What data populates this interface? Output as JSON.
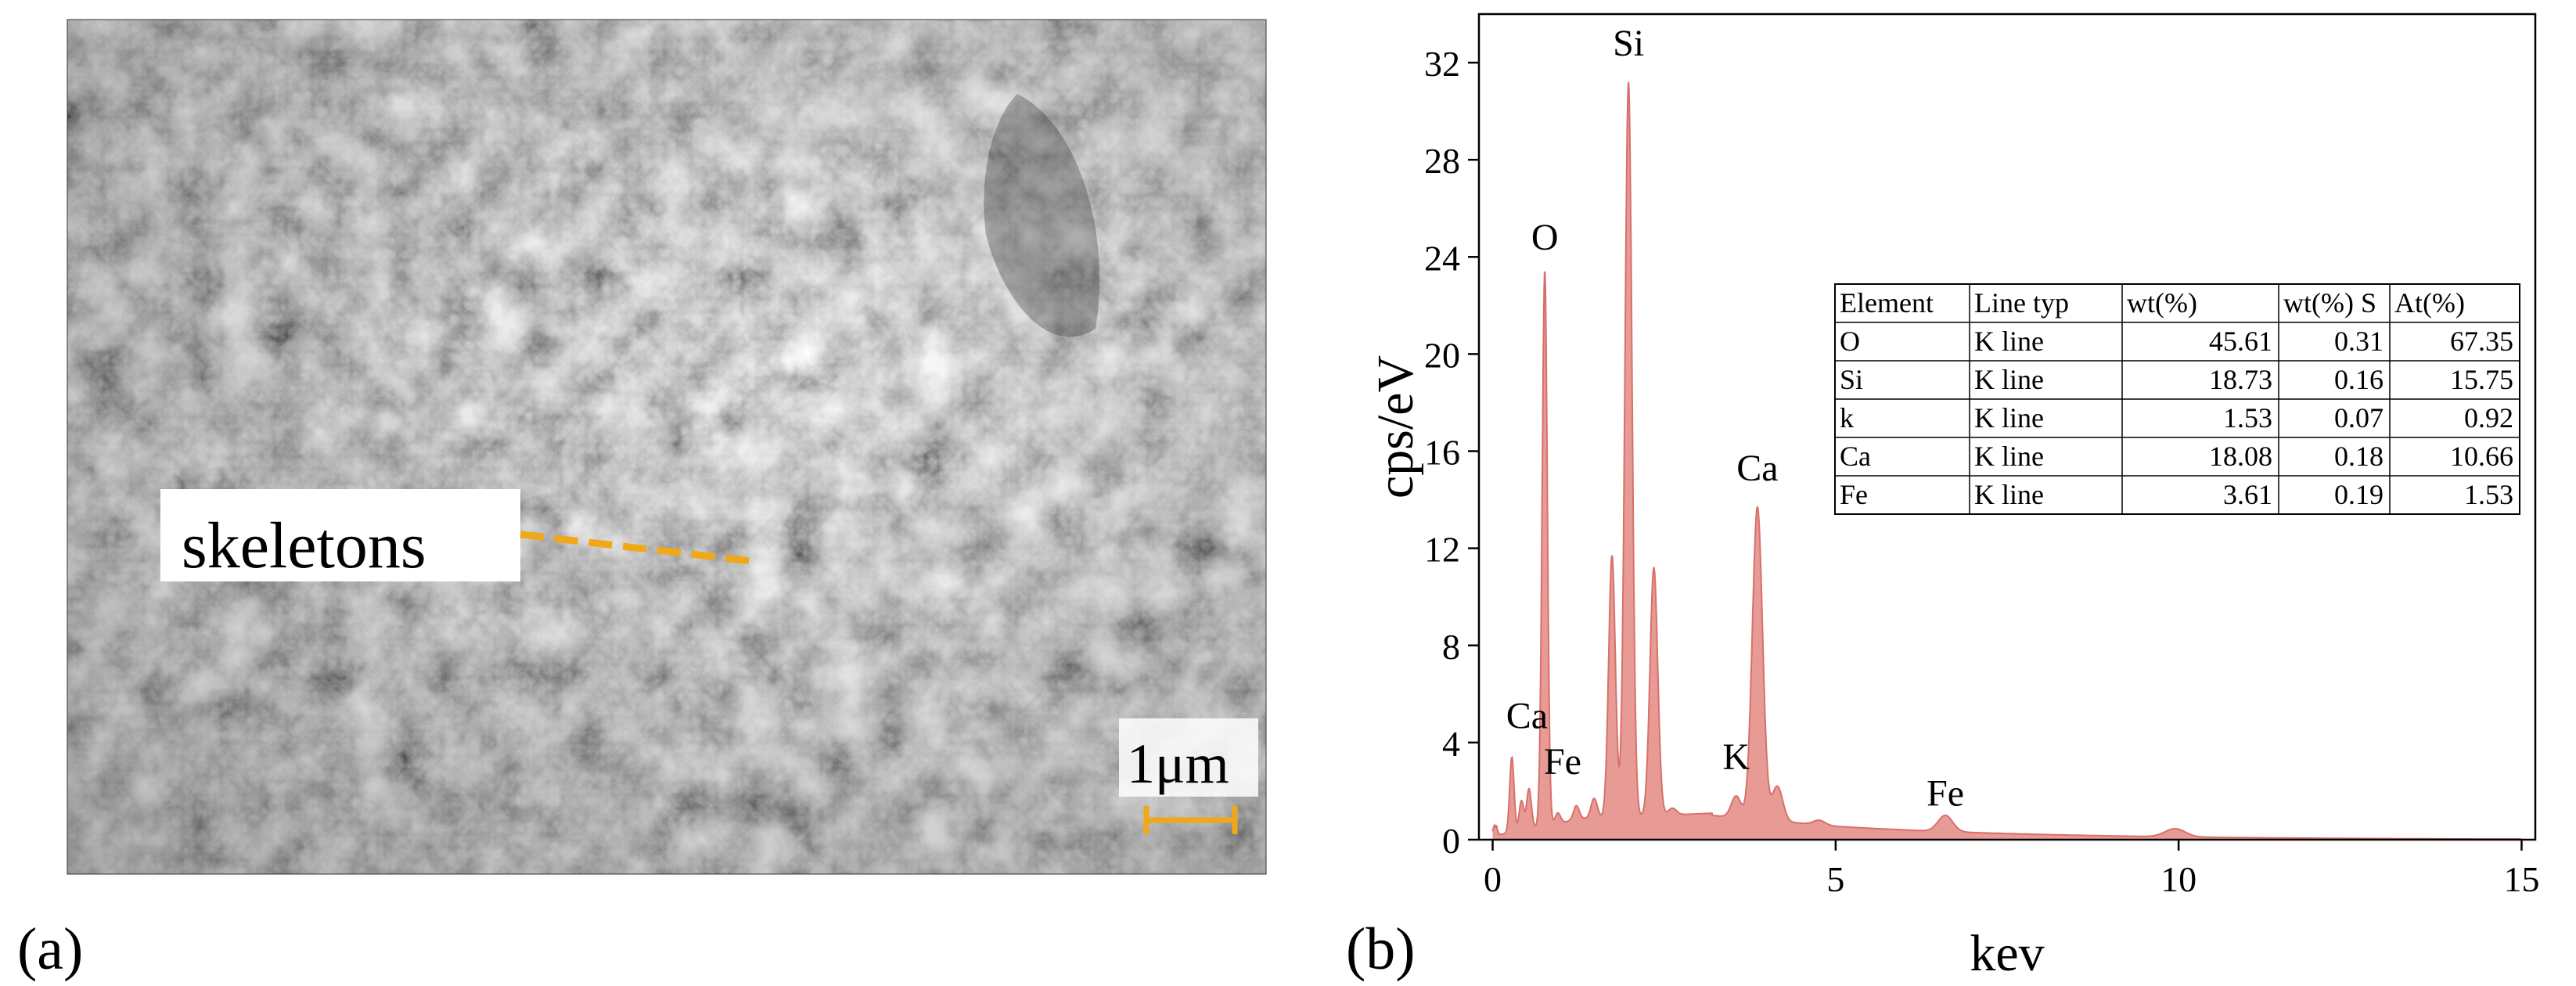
{
  "panel_a": {
    "label": "(a)",
    "annotation": "skeletons",
    "scale_bar_label": "1μm",
    "colors": {
      "annotation_line": "#f0a818",
      "scale_bar": "#f0a818"
    }
  },
  "panel_b": {
    "label": "(b)"
  },
  "chart_data": {
    "type": "area",
    "xlabel": "kev",
    "ylabel": "cps/eV",
    "xlim": [
      -0.2,
      15.2
    ],
    "ylim": [
      0,
      34
    ],
    "xticks": [
      0,
      5,
      10,
      15
    ],
    "xtick_labels": [
      "0",
      "5",
      "10",
      "15"
    ],
    "yticks": [
      0,
      4,
      8,
      12,
      16,
      20,
      24,
      28,
      32
    ],
    "ytick_labels": [
      "0",
      "4",
      "8",
      "12",
      "16",
      "20",
      "24",
      "28",
      "32"
    ],
    "grid": false,
    "colors": {
      "fill": "#e89a95",
      "stroke": "#d7706a"
    },
    "peaks": [
      {
        "x": 0.03,
        "y": 0.6
      },
      {
        "x": 0.28,
        "y": 3.4
      },
      {
        "x": 0.42,
        "y": 1.6
      },
      {
        "x": 0.53,
        "y": 2.1
      },
      {
        "x": 0.71,
        "y": 0.9
      },
      {
        "x": 0.76,
        "y": 23.3
      },
      {
        "x": 0.95,
        "y": 1.1
      },
      {
        "x": 1.22,
        "y": 1.4
      },
      {
        "x": 1.48,
        "y": 1.7
      },
      {
        "x": 1.74,
        "y": 11.7
      },
      {
        "x": 1.98,
        "y": 31.2
      },
      {
        "x": 2.35,
        "y": 11.2
      },
      {
        "x": 2.62,
        "y": 1.3
      },
      {
        "x": 3.55,
        "y": 1.8
      },
      {
        "x": 3.86,
        "y": 13.7
      },
      {
        "x": 4.15,
        "y": 2.2
      },
      {
        "x": 4.76,
        "y": 0.8
      },
      {
        "x": 6.6,
        "y": 1.0
      },
      {
        "x": 9.95,
        "y": 0.45
      }
    ],
    "peak_labels": [
      {
        "text": "Ca",
        "x": 0.5,
        "y": 4.6
      },
      {
        "text": "O",
        "x": 0.76,
        "y": 24.3
      },
      {
        "text": "Fe",
        "x": 1.02,
        "y": 2.7
      },
      {
        "text": "Si",
        "x": 1.98,
        "y": 32.3
      },
      {
        "text": "K",
        "x": 3.55,
        "y": 2.9
      },
      {
        "text": "Ca",
        "x": 3.86,
        "y": 14.8
      },
      {
        "text": "Fe",
        "x": 6.6,
        "y": 1.4
      }
    ],
    "table": {
      "headers": [
        "Element",
        "Line typ",
        "wt(%)",
        "wt(%) S",
        "At(%)"
      ],
      "rows": [
        [
          "O",
          "K line",
          "45.61",
          "0.31",
          "67.35"
        ],
        [
          "Si",
          "K line",
          "18.73",
          "0.16",
          "15.75"
        ],
        [
          "k",
          "K line",
          "1.53",
          "0.07",
          "0.92"
        ],
        [
          "Ca",
          "K line",
          "18.08",
          "0.18",
          "10.66"
        ],
        [
          "Fe",
          "K line",
          "3.61",
          "0.19",
          "1.53"
        ]
      ]
    }
  }
}
